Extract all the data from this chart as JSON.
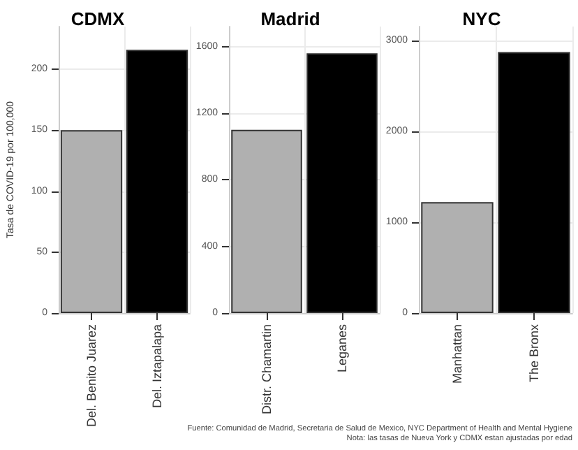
{
  "chart_data": [
    {
      "type": "bar",
      "title": "CDMX",
      "ylabel": "Tasa de COVID-19 por 100,000",
      "categories": [
        "Del. Benito Juarez",
        "Del. Iztapalapa"
      ],
      "values": [
        150,
        216
      ],
      "colors": [
        "#b0b0b0",
        "#000000"
      ],
      "ylim": [
        0,
        235
      ],
      "yticks": [
        0,
        50,
        100,
        150,
        200
      ],
      "grid": true
    },
    {
      "type": "bar",
      "title": "Madrid",
      "categories": [
        "Distr. Chamartin",
        "Leganes"
      ],
      "values": [
        1100,
        1560
      ],
      "colors": [
        "#b0b0b0",
        "#000000"
      ],
      "ylim": [
        0,
        1720
      ],
      "yticks": [
        0,
        400,
        800,
        1200,
        1600
      ],
      "grid": true
    },
    {
      "type": "bar",
      "title": "NYC",
      "categories": [
        "Manhattan",
        "The Bronx"
      ],
      "values": [
        1220,
        2870
      ],
      "colors": [
        "#b0b0b0",
        "#000000"
      ],
      "ylim": [
        0,
        3150
      ],
      "yticks": [
        0,
        1000,
        2000,
        3000
      ],
      "grid": true,
      "annotations": [
        "Fuente: Comunidad de Madrid, Secretaria de Salud de Mexico, NYC Department of Health and Mental Hygiene",
        "Nota: las tasas de Nueva York y CDMX estan ajustadas por edad"
      ]
    }
  ]
}
